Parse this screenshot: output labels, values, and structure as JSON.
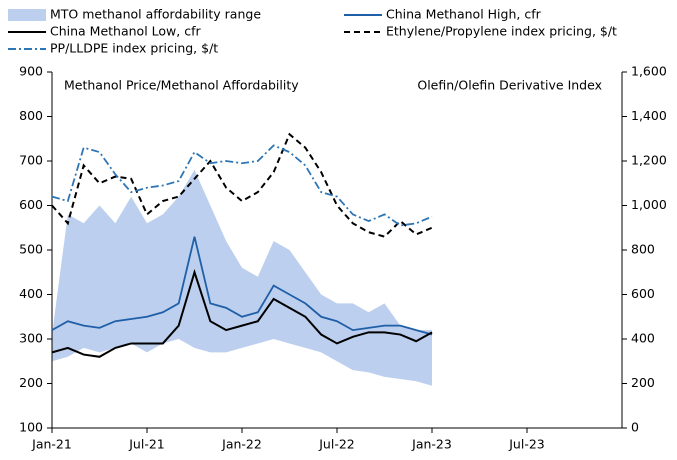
{
  "chart_data": {
    "type": "line",
    "annotations": [
      "Methanol Price/Methanol Affordability",
      "Olefin/Olefin Derivative Index"
    ],
    "categories": [
      "Jan-21",
      null,
      null,
      null,
      null,
      null,
      "Jul-21",
      null,
      null,
      null,
      null,
      null,
      "Jan-22",
      null,
      null,
      null,
      null,
      null,
      "Jul-22",
      null,
      null,
      null,
      null,
      null,
      "Jan-23",
      null,
      null,
      null,
      null,
      null,
      "Jul-23",
      null,
      null,
      null,
      null,
      null
    ],
    "series": [
      {
        "name": "MTO methanol affordability range",
        "color": "#bccfee",
        "style": "range",
        "low": [
          250,
          260,
          280,
          270,
          280,
          290,
          270,
          290,
          300,
          280,
          270,
          270,
          280,
          290,
          300,
          290,
          280,
          270,
          250,
          230,
          225,
          215,
          210,
          205,
          195,
          null,
          null,
          null,
          null,
          null,
          null,
          null,
          null,
          null,
          null,
          null
        ],
        "high": [
          310,
          580,
          560,
          600,
          560,
          620,
          560,
          580,
          620,
          680,
          600,
          520,
          460,
          440,
          520,
          500,
          450,
          400,
          380,
          380,
          360,
          380,
          330,
          320,
          320,
          null,
          null,
          null,
          null,
          null,
          null,
          null,
          null,
          null,
          null,
          null
        ]
      },
      {
        "name": "China Methanol High, cfr",
        "color": "#1f5fa8",
        "style": "solid",
        "values": [
          320,
          340,
          330,
          325,
          340,
          345,
          350,
          360,
          380,
          530,
          380,
          370,
          350,
          360,
          420,
          400,
          380,
          350,
          340,
          320,
          325,
          330,
          330,
          320,
          310,
          null,
          null,
          null,
          null,
          null,
          null,
          null,
          null,
          null,
          null,
          null
        ]
      },
      {
        "name": "China Methanol Low, cfr",
        "color": "#000000",
        "style": "solid",
        "values": [
          270,
          280,
          265,
          260,
          280,
          290,
          290,
          290,
          330,
          450,
          340,
          320,
          330,
          340,
          390,
          370,
          350,
          310,
          290,
          305,
          315,
          315,
          310,
          295,
          315,
          null,
          null,
          null,
          null,
          null,
          null,
          null,
          null,
          null,
          null,
          null
        ]
      },
      {
        "name": "Ethylene/Propylene index pricing, $/t",
        "color": "#000000",
        "style": "dashed",
        "axis": "y2",
        "values": [
          1000,
          920,
          1180,
          1100,
          1130,
          1120,
          960,
          1020,
          1040,
          1120,
          1200,
          1080,
          1020,
          1060,
          1150,
          1320,
          1260,
          1150,
          1000,
          920,
          880,
          860,
          930,
          870,
          900,
          null,
          null,
          null,
          null,
          null,
          null,
          null,
          null,
          null,
          null,
          null
        ]
      },
      {
        "name": "PP/LLDPE index pricing, $/t",
        "color": "#2e75b6",
        "style": "dashdot",
        "axis": "y2",
        "values": [
          1040,
          1020,
          1260,
          1240,
          1140,
          1060,
          1080,
          1090,
          1110,
          1240,
          1190,
          1200,
          1190,
          1200,
          1270,
          1240,
          1180,
          1060,
          1040,
          960,
          930,
          960,
          910,
          920,
          950,
          null,
          null,
          null,
          null,
          null,
          null,
          null,
          null,
          null,
          null,
          null
        ]
      }
    ],
    "ylim": [
      100,
      900
    ],
    "yticks": [
      100,
      200,
      300,
      400,
      500,
      600,
      700,
      800,
      900
    ],
    "y2lim": [
      0,
      1600
    ],
    "y2ticks": [
      0,
      200,
      400,
      600,
      800,
      {
        "value": 1000,
        "label": "1,000"
      },
      {
        "value": 1200,
        "label": "1,200"
      },
      {
        "value": 1400,
        "label": "1,400"
      },
      {
        "value": 1600,
        "label": "1,600"
      }
    ],
    "grid": false
  }
}
